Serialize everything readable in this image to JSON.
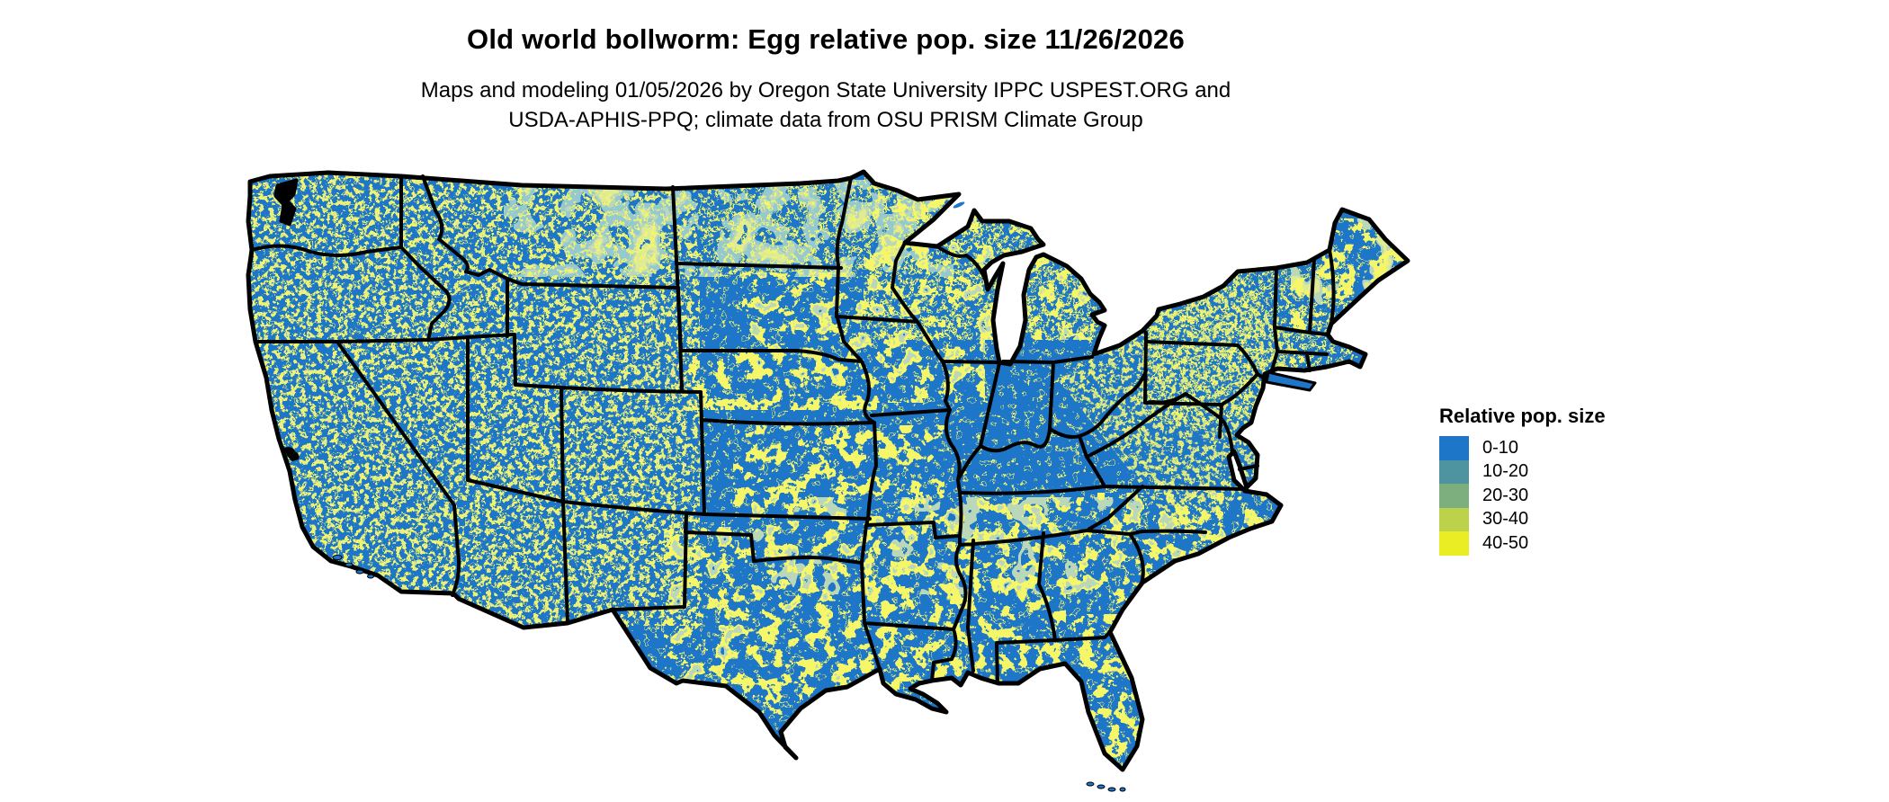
{
  "header": {
    "title": "Old world bollworm: Egg relative pop. size 11/26/2026",
    "subtitle_line1": "Maps and modeling 01/05/2026 by Oregon State University IPPC USPEST.ORG and",
    "subtitle_line2": "USDA-APHIS-PPQ; climate data from OSU PRISM Climate Group"
  },
  "legend": {
    "title": "Relative pop. size",
    "items": [
      {
        "label": "0-10",
        "color": "#1D76C8"
      },
      {
        "label": "10-20",
        "color": "#4E93A0"
      },
      {
        "label": "20-30",
        "color": "#7DAE7D"
      },
      {
        "label": "30-40",
        "color": "#BCD24B"
      },
      {
        "label": "40-50",
        "color": "#EAED23"
      }
    ]
  },
  "map": {
    "region": "Conterminous United States with state borders",
    "colors": {
      "land_base": "#1D76C8",
      "state_border": "#000000",
      "water_background": "#FFFFFF"
    }
  }
}
